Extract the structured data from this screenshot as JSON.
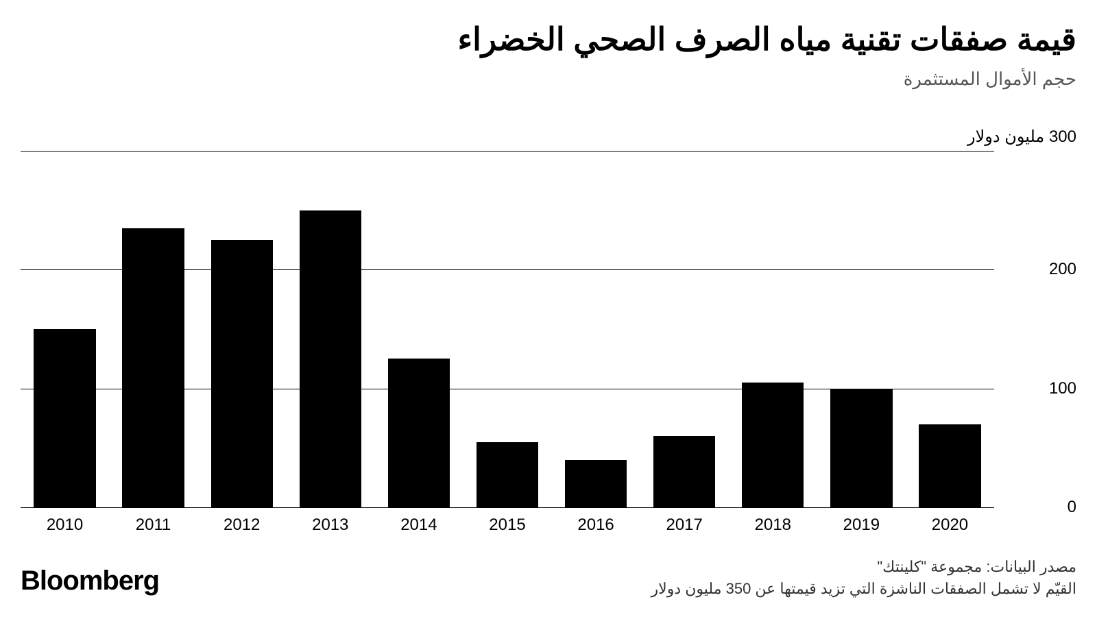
{
  "title": "قيمة صفقات تقنية مياه الصرف الصحي الخضراء",
  "subtitle": "حجم الأموال المستثمرة",
  "title_fontsize": 46,
  "subtitle_fontsize": 26,
  "subtitle_color": "#555555",
  "chart": {
    "type": "bar",
    "categories": [
      "2010",
      "2011",
      "2012",
      "2013",
      "2014",
      "2015",
      "2016",
      "2017",
      "2018",
      "2019",
      "2020"
    ],
    "values": [
      150,
      235,
      225,
      250,
      125,
      55,
      40,
      60,
      105,
      100,
      70
    ],
    "bar_color": "#000000",
    "bar_width": 0.7,
    "ylim": [
      0,
      300
    ],
    "yticks": [
      0,
      100,
      200,
      300
    ],
    "ytick_labels": [
      "0",
      "100",
      "200",
      "300 مليون دولار"
    ],
    "grid_color": "#000000",
    "background_color": "#ffffff",
    "axis_label_fontsize": 24,
    "xtick_fontsize": 24,
    "ytick_fontsize": 24
  },
  "footer": {
    "source": "مصدر البيانات: مجموعة \"كلينتك\"",
    "note": "القيّم لا تشمل الصفقات الناشزة التي تزيد قيمتها عن 350 مليون دولار",
    "fontsize": 22,
    "color": "#333333"
  },
  "brand": {
    "text": "Bloomberg",
    "fontsize": 40,
    "color": "#000000"
  }
}
